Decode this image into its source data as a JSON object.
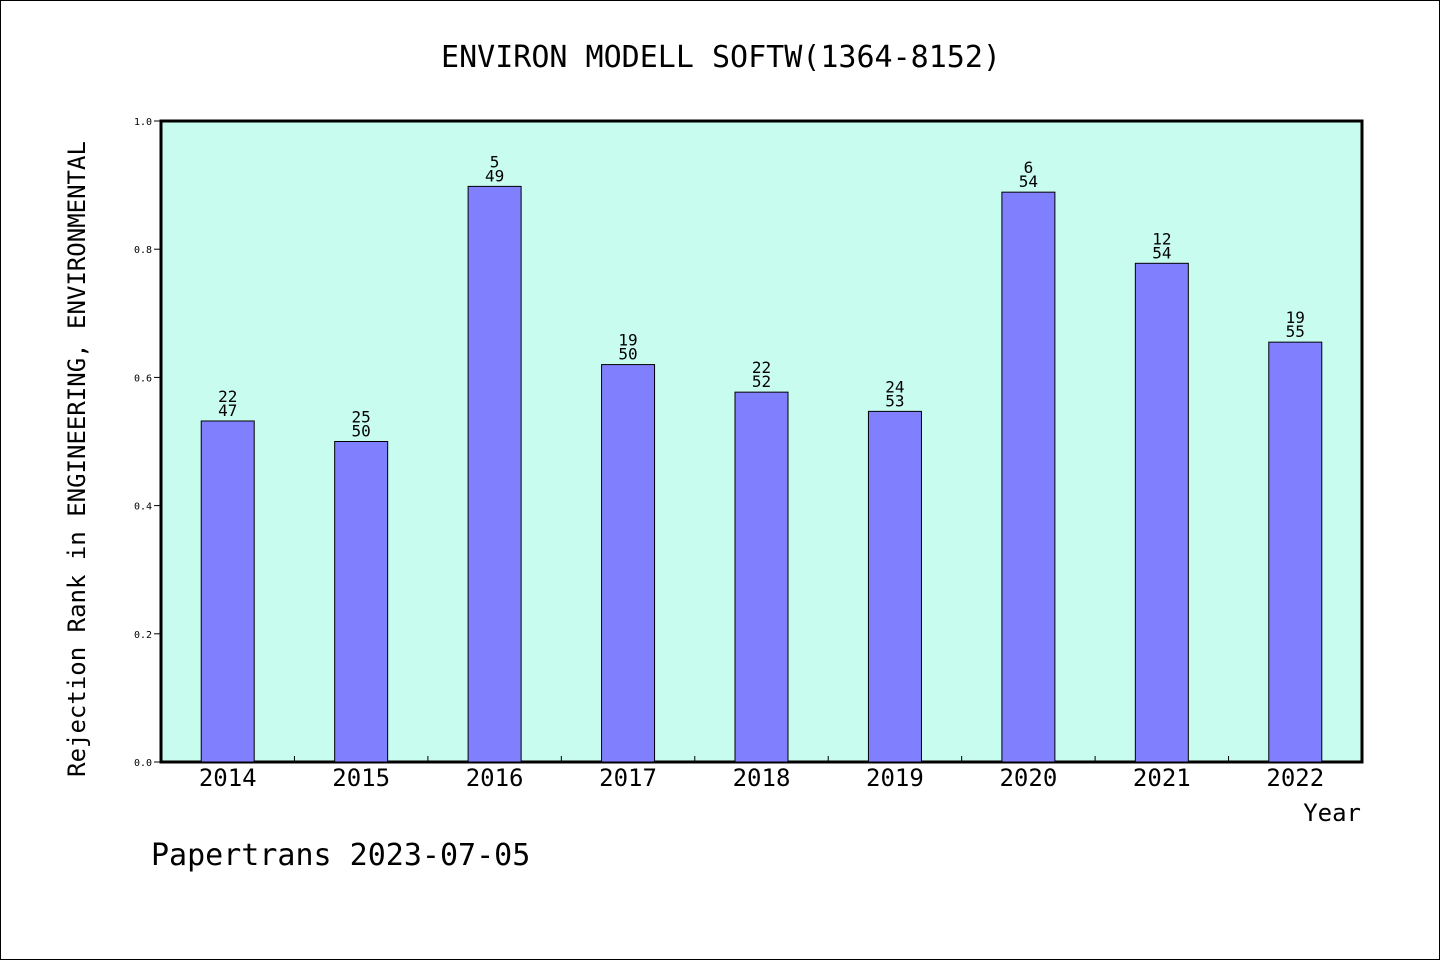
{
  "chart_data": {
    "type": "bar",
    "title": "ENVIRON MODELL SOFTW(1364-8152)",
    "xlabel": "Year",
    "ylabel": "Rejection Rank in ENGINEERING, ENVIRONMENTAL",
    "ylim": [
      0.0,
      1.0
    ],
    "yticks": [
      "0.0",
      "0.2",
      "0.4",
      "0.6",
      "0.8",
      "1.0"
    ],
    "categories": [
      "2014",
      "2015",
      "2016",
      "2017",
      "2018",
      "2019",
      "2020",
      "2021",
      "2022"
    ],
    "values": [
      0.532,
      0.5,
      0.898,
      0.62,
      0.577,
      0.547,
      0.889,
      0.778,
      0.655
    ],
    "labels": [
      [
        "22",
        "47"
      ],
      [
        "25",
        "50"
      ],
      [
        "5",
        "49"
      ],
      [
        "19",
        "50"
      ],
      [
        "22",
        "52"
      ],
      [
        "24",
        "53"
      ],
      [
        "6",
        "54"
      ],
      [
        "12",
        "54"
      ],
      [
        "19",
        "55"
      ]
    ],
    "grid": false,
    "colors": {
      "bar": "#8080ff",
      "plot_background": "#c8fcee",
      "axis": "#000000"
    }
  },
  "footer": "Papertrans 2023-07-05"
}
